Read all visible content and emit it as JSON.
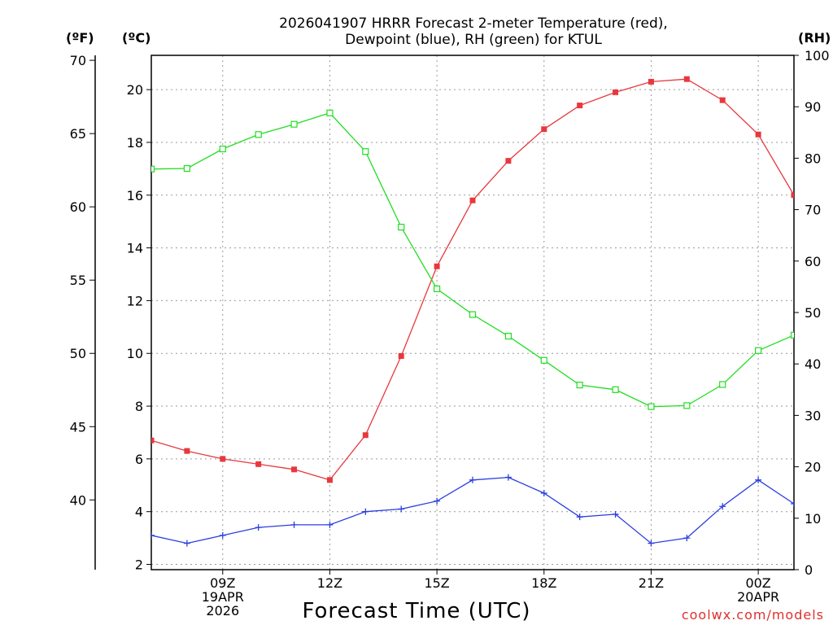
{
  "chart_data": {
    "type": "line",
    "title_lines": [
      "2026041907 HRRR Forecast 2-meter Temperature (red),",
      "Dewpoint (blue), RH (green) for KTUL"
    ],
    "xlabel": "Forecast Time (UTC)",
    "credit": "coolwx.com/models",
    "unit_labels": {
      "fahrenheit": "(ºF)",
      "celsius": "(ºC)",
      "rh": "(RH)"
    },
    "x_range_hours": [
      7,
      25
    ],
    "x_ticks": [
      {
        "hour": 9,
        "lines": [
          "09Z",
          "19APR",
          "2026"
        ]
      },
      {
        "hour": 12,
        "lines": [
          "12Z"
        ]
      },
      {
        "hour": 15,
        "lines": [
          "15Z"
        ]
      },
      {
        "hour": 18,
        "lines": [
          "18Z"
        ]
      },
      {
        "hour": 21,
        "lines": [
          "21Z"
        ]
      },
      {
        "hour": 24,
        "lines": [
          "00Z",
          "20APR"
        ]
      }
    ],
    "celsius_axis": {
      "range": [
        1.8,
        21.3
      ],
      "ticks": [
        2,
        4,
        6,
        8,
        10,
        12,
        14,
        16,
        18,
        20
      ]
    },
    "fahrenheit_axis": {
      "ticks": [
        40,
        45,
        50,
        55,
        60,
        65,
        70
      ]
    },
    "rh_axis": {
      "range": [
        0,
        100
      ],
      "ticks": [
        0,
        10,
        20,
        30,
        40,
        50,
        60,
        70,
        80,
        90,
        100
      ]
    },
    "series": [
      {
        "name": "Temperature",
        "axis": "celsius",
        "color": "#e8383d",
        "marker": "filled-square",
        "x": [
          7,
          8,
          9,
          10,
          11,
          12,
          13,
          14,
          15,
          16,
          17,
          18,
          19,
          20,
          21,
          22,
          23,
          24,
          25
        ],
        "values": [
          6.7,
          6.3,
          6.0,
          5.8,
          5.6,
          5.2,
          6.9,
          9.9,
          13.3,
          15.8,
          17.3,
          18.5,
          19.4,
          19.9,
          20.3,
          20.4,
          19.6,
          18.3,
          16.0
        ]
      },
      {
        "name": "Dewpoint",
        "axis": "celsius",
        "color": "#2b3fe0",
        "marker": "plus",
        "x": [
          7,
          8,
          9,
          10,
          11,
          12,
          13,
          14,
          15,
          16,
          17,
          18,
          19,
          20,
          21,
          22,
          23,
          24,
          25
        ],
        "values": [
          3.1,
          2.8,
          3.1,
          3.4,
          3.5,
          3.5,
          4.0,
          4.1,
          4.4,
          5.2,
          5.3,
          4.7,
          3.8,
          3.9,
          2.8,
          3.0,
          4.2,
          5.2,
          4.3
        ]
      },
      {
        "name": "RH",
        "axis": "rh",
        "color": "#22dd22",
        "marker": "open-square",
        "x": [
          7,
          8,
          9,
          10,
          11,
          12,
          13,
          14,
          15,
          16,
          17,
          18,
          19,
          20,
          21,
          22,
          23,
          24,
          25
        ],
        "values": [
          77.9,
          78.0,
          81.8,
          84.6,
          86.6,
          88.8,
          81.3,
          66.6,
          54.6,
          49.6,
          45.4,
          40.7,
          35.9,
          35.0,
          31.7,
          31.9,
          36.0,
          42.6,
          45.6
        ]
      }
    ]
  }
}
